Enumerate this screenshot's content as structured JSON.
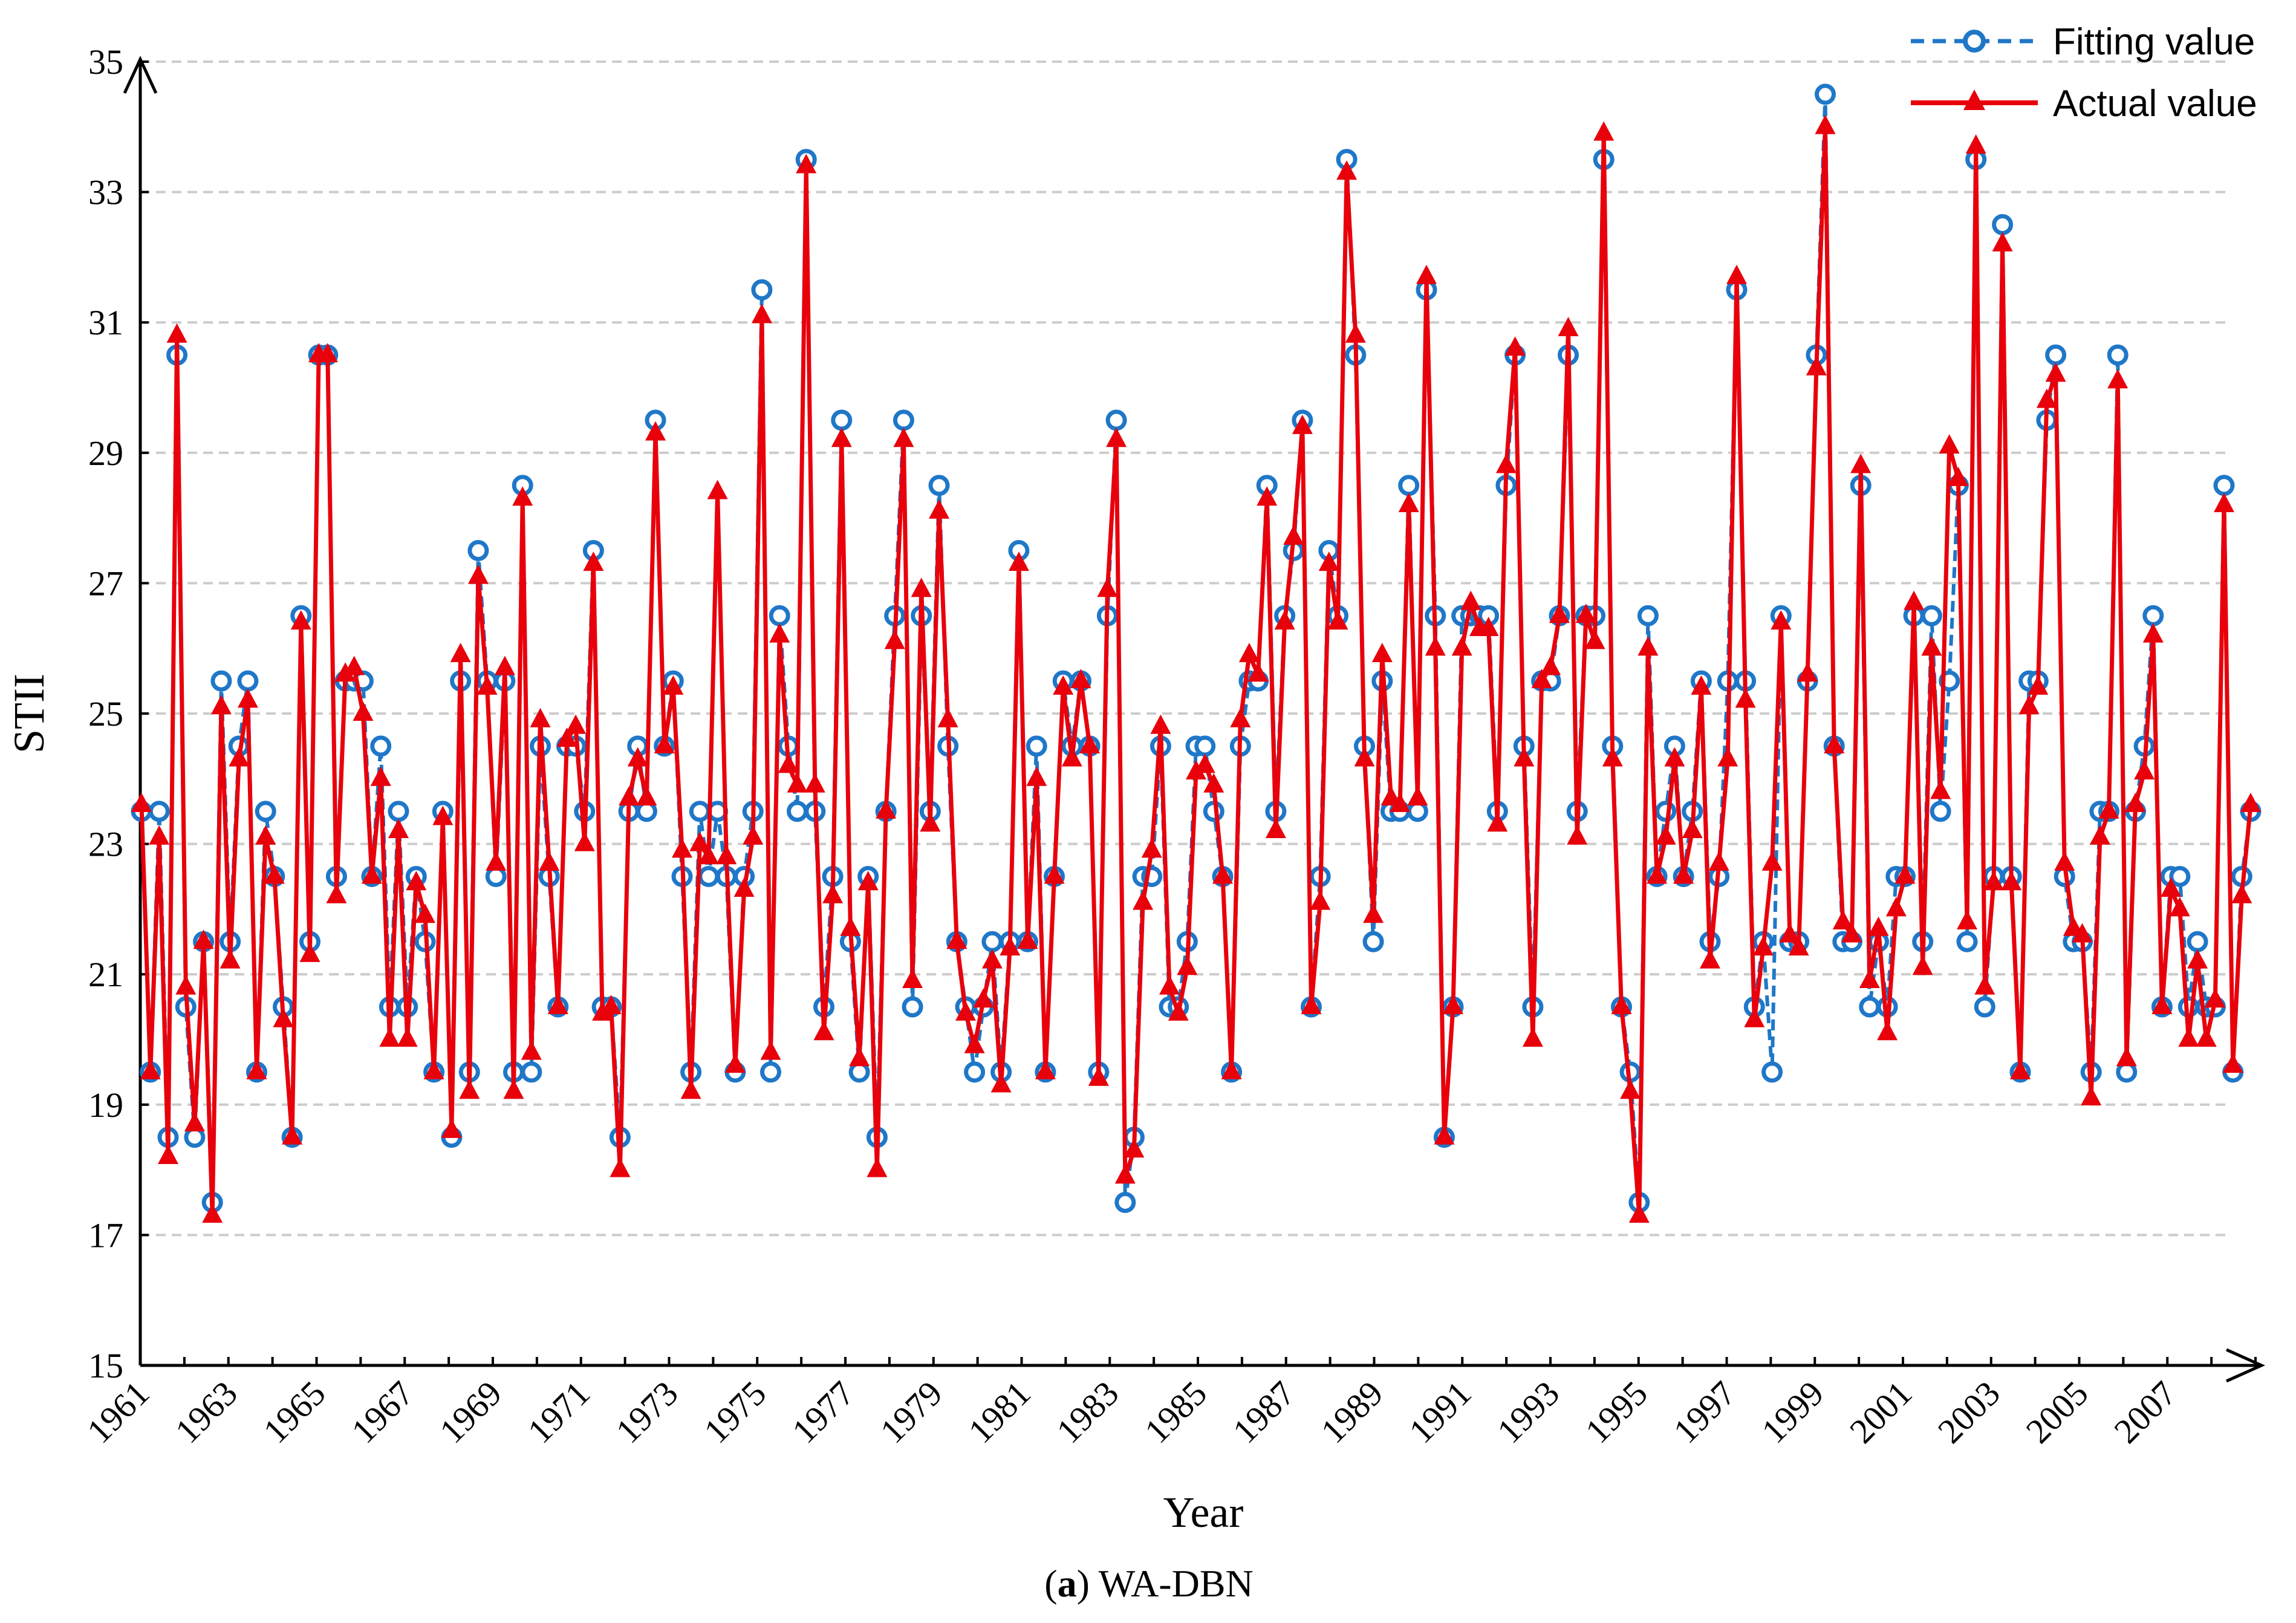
{
  "chart_data": {
    "type": "line",
    "title": "",
    "caption_bold": "a",
    "caption_rest": " WA-DBN",
    "caption_open": "(",
    "caption_close": ")",
    "xlabel": "Year",
    "ylabel": "STII",
    "ylim": [
      15,
      35
    ],
    "yticks": [
      "15",
      "17",
      "19",
      "21",
      "23",
      "25",
      "27",
      "29",
      "31",
      "33",
      "35"
    ],
    "xticks": [
      "1961",
      "1963",
      "1965",
      "1967",
      "1969",
      "1971",
      "1973",
      "1975",
      "1977",
      "1979",
      "1981",
      "1983",
      "1985",
      "1987",
      "1989",
      "1991",
      "1993",
      "1995",
      "1997",
      "1999",
      "2001",
      "2003",
      "2005",
      "2007"
    ],
    "x_start": 1961,
    "x_end": 2009,
    "legend_position": "top-right",
    "grid": true,
    "colors": {
      "fitting": "#1f77c8",
      "actual": "#e8000b",
      "grid": "#cccccc",
      "axis": "#000000"
    },
    "series": [
      {
        "name": "Fitting value",
        "style": "dashed-circle",
        "values": [
          23.5,
          19.5,
          23.5,
          18.5,
          30.5,
          20.5,
          18.5,
          21.5,
          17.5,
          25.5,
          21.5,
          24.5,
          25.5,
          19.5,
          23.5,
          22.5,
          20.5,
          18.5,
          26.5,
          21.5,
          30.5,
          30.5,
          22.5,
          25.5,
          25.5,
          25.5,
          22.5,
          24.5,
          20.5,
          23.5,
          20.5,
          22.5,
          21.5,
          19.5,
          23.5,
          18.5,
          25.5,
          19.5,
          27.5,
          25.5,
          22.5,
          25.5,
          19.5,
          28.5,
          19.5,
          24.5,
          22.5,
          20.5,
          24.5,
          24.5,
          23.5,
          27.5,
          20.5,
          20.5,
          18.5,
          23.5,
          24.5,
          23.5,
          29.5,
          24.5,
          25.5,
          22.5,
          19.5,
          23.5,
          22.5,
          23.5,
          22.5,
          19.5,
          22.5,
          23.5,
          31.5,
          19.5,
          26.5,
          24.5,
          23.5,
          33.5,
          23.5,
          20.5,
          22.5,
          29.5,
          21.5,
          19.5,
          22.5,
          18.5,
          23.5,
          26.5,
          29.5,
          20.5,
          26.5,
          23.5,
          28.5,
          24.5,
          21.5,
          20.5,
          19.5,
          20.5,
          21.5,
          19.5,
          21.5,
          27.5,
          21.5,
          24.5,
          19.5,
          22.5,
          25.5,
          24.5,
          25.5,
          24.5,
          19.5,
          26.5,
          29.5,
          17.5,
          18.5,
          22.5,
          22.5,
          24.5,
          20.5,
          20.5,
          21.5,
          24.5,
          24.5,
          23.5,
          22.5,
          19.5,
          24.5,
          25.5,
          25.5,
          28.5,
          23.5,
          26.5,
          27.5,
          29.5,
          20.5,
          22.5,
          27.5,
          26.5,
          33.5,
          30.5,
          24.5,
          21.5,
          25.5,
          23.5,
          23.5,
          28.5,
          23.5,
          31.5,
          26.5,
          18.5,
          20.5,
          26.5,
          26.5,
          26.5,
          26.5,
          23.5,
          28.5,
          30.5,
          24.5,
          20.5,
          25.5,
          25.5,
          26.5,
          30.5,
          23.5,
          26.5,
          26.5,
          33.5,
          24.5,
          20.5,
          19.5,
          17.5,
          26.5,
          22.5,
          23.5,
          24.5,
          22.5,
          23.5,
          25.5,
          21.5,
          22.5,
          25.5,
          31.5,
          25.5,
          20.5,
          21.5,
          19.5,
          26.5,
          21.5,
          21.5,
          25.5,
          30.5,
          34.5,
          24.5,
          21.5,
          21.5,
          28.5,
          20.5,
          21.5,
          20.5,
          22.5,
          22.5,
          26.5,
          21.5,
          26.5,
          23.5,
          25.5,
          28.5,
          21.5,
          33.5,
          20.5,
          22.5,
          32.5,
          22.5,
          19.5,
          25.5,
          25.5,
          29.5,
          30.5,
          22.5,
          21.5,
          21.5,
          19.5,
          23.5,
          23.5,
          30.5,
          19.5,
          23.5,
          24.5,
          26.5,
          20.5,
          22.5,
          22.5,
          20.5,
          21.5,
          20.5,
          20.5,
          28.5,
          19.5,
          22.5,
          23.5
        ]
      },
      {
        "name": "Actual value",
        "style": "solid-triangle",
        "values": [
          23.6,
          19.5,
          23.1,
          18.2,
          30.8,
          20.8,
          18.7,
          21.5,
          17.3,
          25.1,
          21.2,
          24.3,
          25.2,
          19.5,
          23.1,
          22.5,
          20.3,
          18.5,
          26.4,
          21.3,
          30.5,
          30.5,
          22.2,
          25.6,
          25.7,
          25.0,
          22.5,
          24.0,
          20.0,
          23.2,
          20.0,
          22.4,
          21.9,
          19.5,
          23.4,
          18.6,
          25.9,
          19.2,
          27.1,
          25.4,
          22.7,
          25.7,
          19.2,
          28.3,
          19.8,
          24.9,
          22.7,
          20.5,
          24.6,
          24.8,
          23.0,
          27.3,
          20.4,
          20.5,
          18.0,
          23.7,
          24.3,
          23.7,
          29.3,
          24.5,
          25.4,
          22.9,
          19.2,
          23.0,
          22.8,
          28.4,
          22.8,
          19.6,
          22.3,
          23.1,
          31.1,
          19.8,
          26.2,
          24.2,
          23.9,
          33.4,
          23.9,
          20.1,
          22.2,
          29.2,
          21.7,
          19.7,
          22.4,
          18.0,
          23.5,
          26.1,
          29.2,
          20.9,
          26.9,
          23.3,
          28.1,
          24.9,
          21.5,
          20.4,
          19.9,
          20.6,
          21.2,
          19.3,
          21.4,
          27.3,
          21.5,
          24.0,
          19.5,
          22.5,
          25.4,
          24.3,
          25.5,
          24.5,
          19.4,
          26.9,
          29.2,
          17.9,
          18.3,
          22.1,
          22.9,
          24.8,
          20.8,
          20.4,
          21.1,
          24.1,
          24.2,
          23.9,
          22.5,
          19.5,
          24.9,
          25.9,
          25.6,
          28.3,
          23.2,
          26.4,
          27.7,
          29.4,
          20.5,
          22.1,
          27.3,
          26.4,
          33.3,
          30.8,
          24.3,
          21.9,
          25.9,
          23.7,
          23.6,
          28.2,
          23.7,
          31.7,
          26.0,
          18.5,
          20.5,
          26.0,
          26.7,
          26.3,
          26.3,
          23.3,
          28.8,
          30.6,
          24.3,
          20.0,
          25.5,
          25.7,
          26.5,
          30.9,
          23.1,
          26.5,
          26.1,
          33.9,
          24.3,
          20.5,
          19.2,
          17.3,
          26.0,
          22.5,
          23.1,
          24.3,
          22.5,
          23.2,
          25.4,
          21.2,
          22.7,
          24.3,
          31.7,
          25.2,
          20.3,
          21.4,
          22.7,
          26.4,
          21.6,
          21.4,
          25.6,
          30.3,
          34.0,
          24.5,
          21.8,
          21.6,
          28.8,
          20.9,
          21.7,
          20.1,
          22.0,
          22.5,
          26.7,
          21.1,
          26.0,
          23.8,
          29.1,
          28.6,
          21.8,
          33.7,
          20.8,
          22.4,
          32.2,
          22.4,
          19.5,
          25.1,
          25.4,
          29.8,
          30.2,
          22.7,
          21.7,
          21.6,
          19.1,
          23.1,
          23.5,
          30.1,
          19.7,
          23.6,
          24.1,
          26.2,
          20.5,
          22.3,
          22.0,
          20.0,
          21.2,
          20.0,
          20.6,
          28.2,
          19.6,
          22.2,
          23.6
        ]
      }
    ]
  }
}
